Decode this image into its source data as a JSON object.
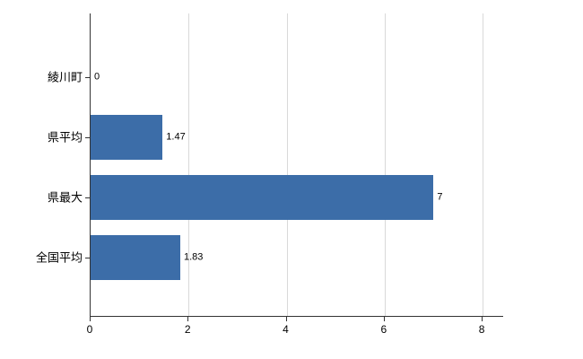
{
  "chart_data": {
    "type": "bar",
    "orientation": "horizontal",
    "title": "",
    "xlabel": "",
    "ylabel": "",
    "categories": [
      "綾川町",
      "県平均",
      "県最大",
      "全国平均"
    ],
    "values": [
      0,
      1.47,
      7,
      1.83
    ],
    "value_labels": [
      "0",
      "1.47",
      "7",
      "1.83"
    ],
    "xticks": [
      0,
      2,
      4,
      6,
      8
    ],
    "xtick_labels": [
      "0",
      "2",
      "4",
      "6",
      "8"
    ],
    "xlim": [
      0,
      8.42
    ],
    "grid": true,
    "legend": false,
    "colors": {
      "bar": "#3c6da8",
      "grid": "#d9d9d9",
      "axis": "#333333",
      "background": "#ffffff",
      "text": "#000000"
    }
  }
}
